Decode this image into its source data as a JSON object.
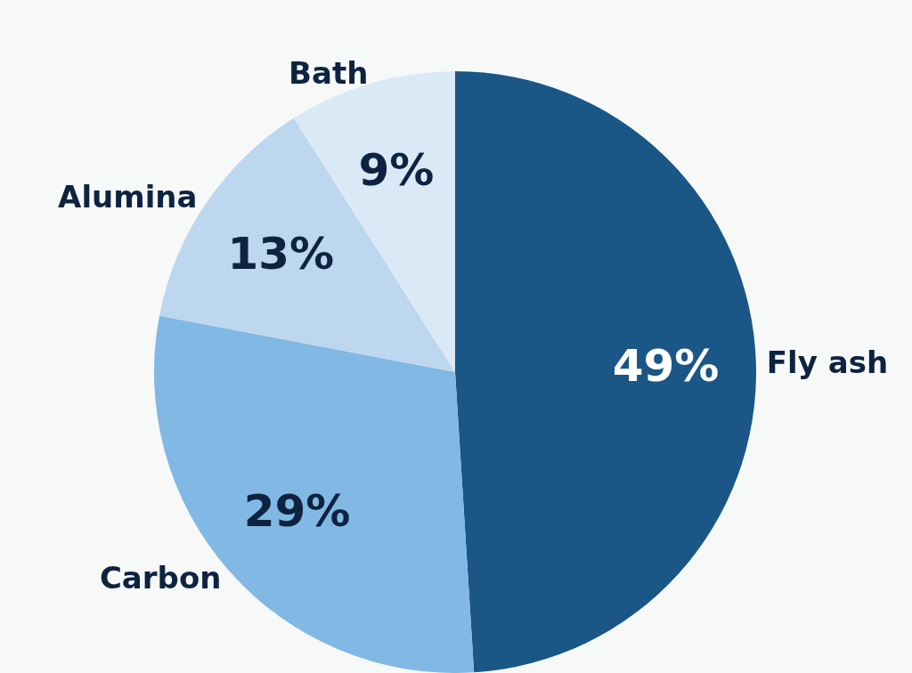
{
  "chart_data": {
    "type": "pie",
    "categories": [
      "Fly ash",
      "Carbon",
      "Alumina",
      "Bath"
    ],
    "values": [
      49,
      29,
      13,
      9
    ],
    "colors": [
      "#1a5686",
      "#82b8e4",
      "#bcd7ee",
      "#dbe9f6"
    ],
    "value_labels": [
      "49%",
      "29%",
      "13%",
      "9%"
    ],
    "legend": false
  }
}
